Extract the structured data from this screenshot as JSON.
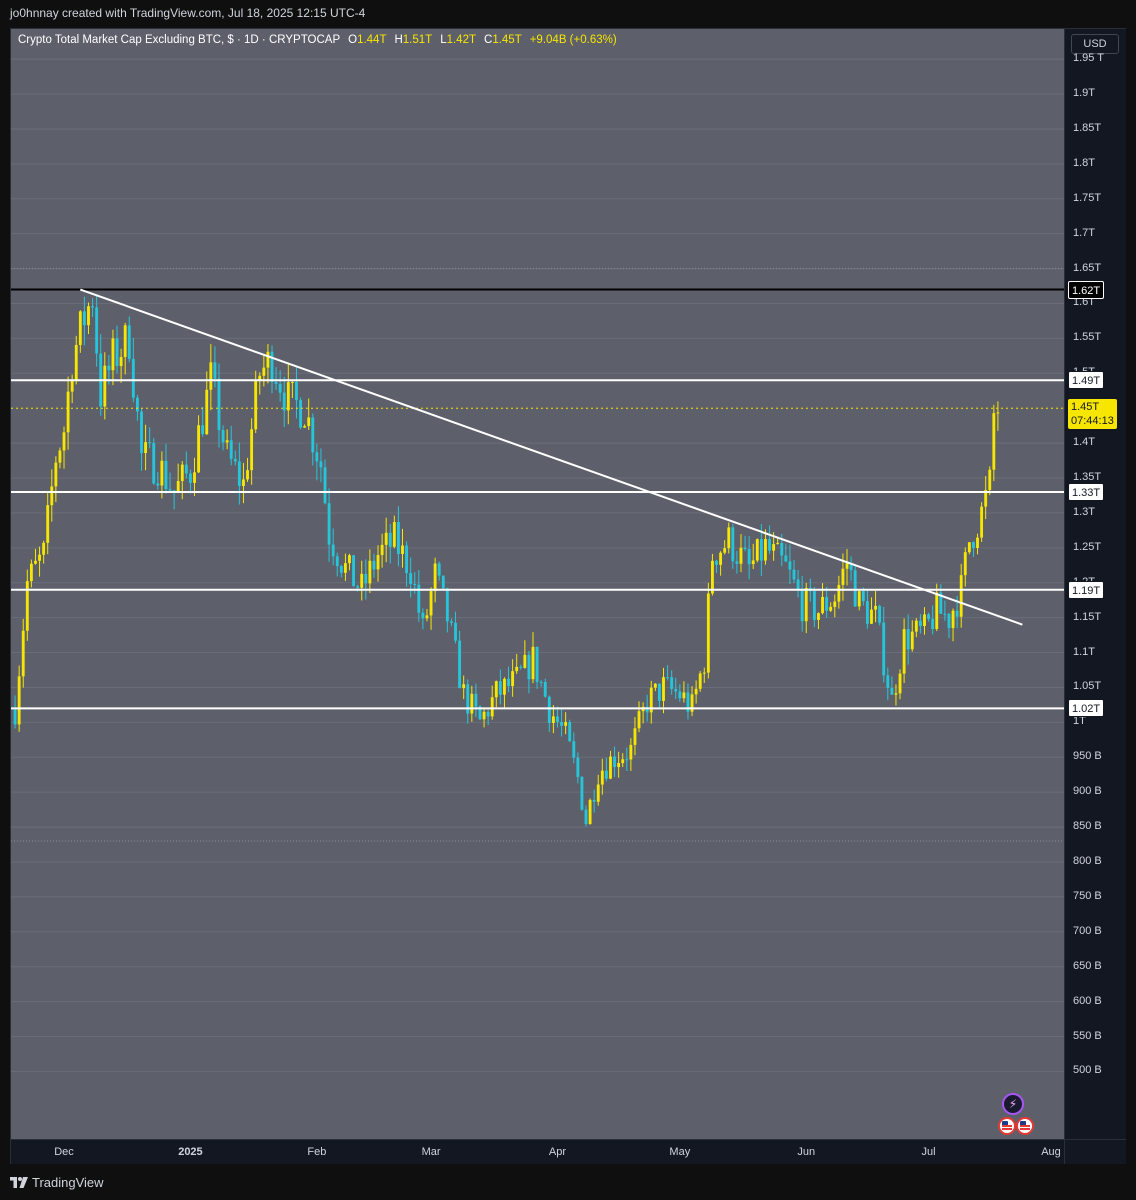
{
  "header": {
    "credit": "jo0hnnay created with TradingView.com, Jul 18, 2025 12:15 UTC-4"
  },
  "legend": {
    "symbol": "Crypto Total Market Cap Excluding BTC, $ · 1D · CRYPTOCAP",
    "o_label": "O",
    "o_value": "1.44T",
    "h_label": "H",
    "h_value": "1.51T",
    "l_label": "L",
    "l_value": "1.42T",
    "c_label": "C",
    "c_value": "1.45T",
    "change": "+9.04B (+0.63%)"
  },
  "currency_button": "USD",
  "price_axis": {
    "ticks": [
      "1.95 T",
      "1.9T",
      "1.85T",
      "1.8T",
      "1.75T",
      "1.7T",
      "1.65T",
      "1.6T",
      "1.55T",
      "1.5T",
      "1.4T",
      "1.35T",
      "1.3T",
      "1.25T",
      "1.2T",
      "1.15T",
      "1.1T",
      "1.05T",
      "1T",
      "950 B",
      "900 B",
      "850 B",
      "800 B",
      "750 B",
      "700 B",
      "650 B",
      "600 B",
      "550 B",
      "500 B"
    ],
    "tick_values": [
      1.95,
      1.9,
      1.85,
      1.8,
      1.75,
      1.7,
      1.65,
      1.6,
      1.55,
      1.5,
      1.4,
      1.35,
      1.3,
      1.25,
      1.2,
      1.15,
      1.1,
      1.05,
      1.0,
      0.95,
      0.9,
      0.85,
      0.8,
      0.75,
      0.7,
      0.65,
      0.6,
      0.55,
      0.5
    ]
  },
  "levels": [
    {
      "label": "1.62T",
      "value": 1.62,
      "style": "black"
    },
    {
      "label": "1.49T",
      "value": 1.49,
      "style": "white"
    },
    {
      "label": "1.33T",
      "value": 1.33,
      "style": "white"
    },
    {
      "label": "1.19T",
      "value": 1.19,
      "style": "white"
    },
    {
      "label": "1.02T",
      "value": 1.02,
      "style": "white"
    }
  ],
  "live_price": {
    "label": "1.45T",
    "countdown": "07:44:13",
    "value": 1.45
  },
  "time_axis": [
    {
      "label": "Dec",
      "bold": false
    },
    {
      "label": "2025",
      "bold": true
    },
    {
      "label": "Feb",
      "bold": false
    },
    {
      "label": "Mar",
      "bold": false
    },
    {
      "label": "Apr",
      "bold": false
    },
    {
      "label": "May",
      "bold": false
    },
    {
      "label": "Jun",
      "bold": false
    },
    {
      "label": "Jul",
      "bold": false
    },
    {
      "label": "Aug",
      "bold": false
    }
  ],
  "chart_data": {
    "type": "candlestick",
    "unit": "USD trillions",
    "interval": "1D",
    "ylim": [
      0.47,
      1.99
    ],
    "close_path": [
      [
        "2024-11-19",
        1.02
      ],
      [
        "2024-11-22",
        1.2
      ],
      [
        "2024-11-26",
        1.24
      ],
      [
        "2024-11-29",
        1.38
      ],
      [
        "2024-12-01",
        1.42
      ],
      [
        "2024-12-03",
        1.52
      ],
      [
        "2024-12-06",
        1.58
      ],
      [
        "2024-12-08",
        1.61
      ],
      [
        "2024-12-10",
        1.47
      ],
      [
        "2024-12-13",
        1.52
      ],
      [
        "2024-12-17",
        1.55
      ],
      [
        "2024-12-20",
        1.38
      ],
      [
        "2024-12-24",
        1.37
      ],
      [
        "2024-12-28",
        1.33
      ],
      [
        "2025-01-01",
        1.36
      ],
      [
        "2025-01-06",
        1.49
      ],
      [
        "2025-01-10",
        1.38
      ],
      [
        "2025-01-14",
        1.34
      ],
      [
        "2025-01-18",
        1.5
      ],
      [
        "2025-01-21",
        1.52
      ],
      [
        "2025-01-25",
        1.46
      ],
      [
        "2025-01-29",
        1.45
      ],
      [
        "2025-02-02",
        1.37
      ],
      [
        "2025-02-04",
        1.27
      ],
      [
        "2025-02-08",
        1.22
      ],
      [
        "2025-02-12",
        1.19
      ],
      [
        "2025-02-16",
        1.24
      ],
      [
        "2025-02-20",
        1.26
      ],
      [
        "2025-02-24",
        1.22
      ],
      [
        "2025-02-27",
        1.13
      ],
      [
        "2025-03-02",
        1.21
      ],
      [
        "2025-03-05",
        1.15
      ],
      [
        "2025-03-09",
        1.04
      ],
      [
        "2025-03-13",
        1.0
      ],
      [
        "2025-03-17",
        1.04
      ],
      [
        "2025-03-22",
        1.06
      ],
      [
        "2025-03-26",
        1.09
      ],
      [
        "2025-03-30",
        1.02
      ],
      [
        "2025-04-03",
        0.98
      ],
      [
        "2025-04-06",
        0.92
      ],
      [
        "2025-04-08",
        0.86
      ],
      [
        "2025-04-11",
        0.93
      ],
      [
        "2025-04-15",
        0.95
      ],
      [
        "2025-04-19",
        0.96
      ],
      [
        "2025-04-23",
        1.03
      ],
      [
        "2025-04-27",
        1.05
      ],
      [
        "2025-05-01",
        1.04
      ],
      [
        "2025-05-04",
        1.02
      ],
      [
        "2025-05-07",
        1.09
      ],
      [
        "2025-05-09",
        1.24
      ],
      [
        "2025-05-13",
        1.26
      ],
      [
        "2025-05-18",
        1.22
      ],
      [
        "2025-05-22",
        1.25
      ],
      [
        "2025-05-27",
        1.22
      ],
      [
        "2025-05-31",
        1.17
      ],
      [
        "2025-06-04",
        1.16
      ],
      [
        "2025-06-08",
        1.18
      ],
      [
        "2025-06-11",
        1.23
      ],
      [
        "2025-06-14",
        1.17
      ],
      [
        "2025-06-18",
        1.15
      ],
      [
        "2025-06-22",
        1.03
      ],
      [
        "2025-06-25",
        1.12
      ],
      [
        "2025-06-30",
        1.13
      ],
      [
        "2025-07-03",
        1.16
      ],
      [
        "2025-07-06",
        1.15
      ],
      [
        "2025-07-09",
        1.19
      ],
      [
        "2025-07-11",
        1.26
      ],
      [
        "2025-07-14",
        1.3
      ],
      [
        "2025-07-16",
        1.34
      ],
      [
        "2025-07-17",
        1.44
      ],
      [
        "2025-07-18",
        1.45
      ]
    ],
    "trendline": {
      "from": [
        "2024-12-05",
        1.62
      ],
      "to": [
        "2025-07-24",
        1.14
      ]
    },
    "horizontal_levels": [
      1.62,
      1.49,
      1.33,
      1.19,
      1.02
    ],
    "last_close": 1.45
  },
  "footer": {
    "brand": "TradingView"
  },
  "colors": {
    "up": "#f7e600",
    "down": "#26c6da",
    "background": "#5d606b",
    "line": "#ffffff"
  }
}
